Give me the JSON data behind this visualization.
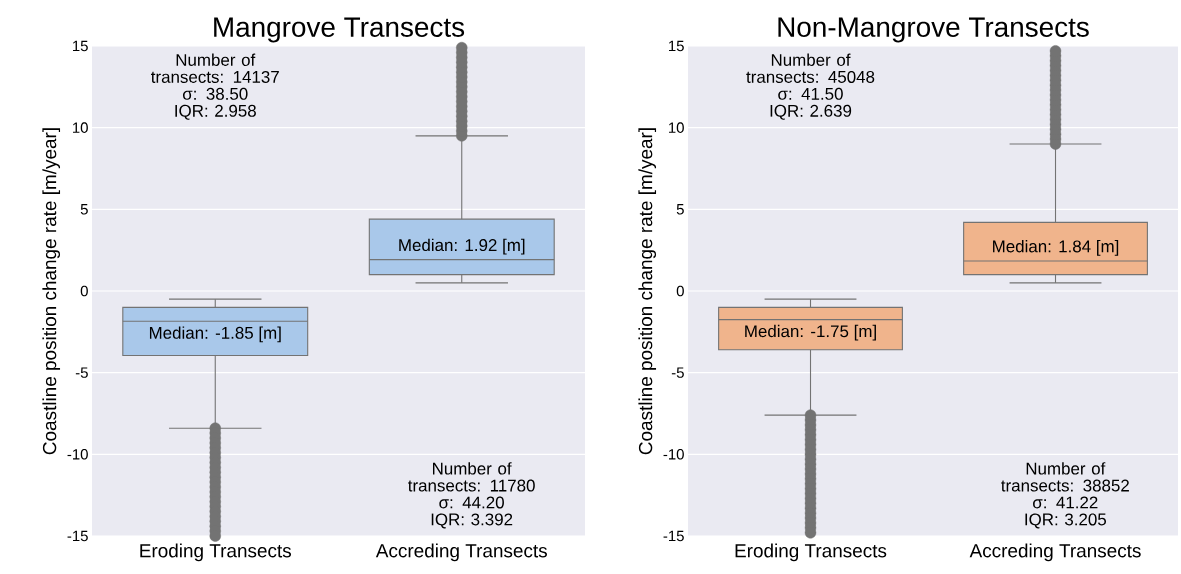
{
  "chart_data": [
    {
      "type": "box",
      "title": "Mangrove Transects",
      "ylabel": "Coastline position change rate [m/year]",
      "categories": [
        "Eroding Transects",
        "Accreding Transects"
      ],
      "series": [
        {
          "color": "#a9c8ea",
          "marker": "circle",
          "boxes": [
            {
              "low": -8.4,
              "q1": -3.95,
              "median": -1.85,
              "q3": -1.0,
              "high": -0.5,
              "outliers": [
                -8.4,
                -8.7,
                -9.0,
                -9.3,
                -9.6,
                -9.9,
                -10.2,
                -10.5,
                -10.8,
                -11.1,
                -11.4,
                -11.7,
                -12.0,
                -12.3,
                -12.6,
                -12.9,
                -13.2,
                -13.5,
                -13.8,
                -14.1,
                -14.4,
                -14.7,
                -15.0
              ]
            },
            {
              "low": 0.5,
              "q1": 1.0,
              "median": 1.92,
              "q3": 4.4,
              "high": 9.5,
              "outliers": [
                9.5,
                9.8,
                10.1,
                10.4,
                10.7,
                11.0,
                11.3,
                11.6,
                11.9,
                12.2,
                12.5,
                12.8,
                13.1,
                13.4,
                13.7,
                14.0,
                14.3,
                14.6,
                14.9
              ]
            }
          ]
        }
      ],
      "ylim": [
        -15,
        15
      ],
      "yticks": [
        -15,
        -10,
        -5,
        0,
        5,
        10,
        15
      ],
      "grid": "y",
      "annotations": [
        "Number of transects: 14137",
        "σ: 38.50",
        "IQR: 2.958",
        {
          "text": "Median: -1.85 [m]",
          "x": "Eroding Transects",
          "y": -1.85
        },
        {
          "text": "Median: 1.92 [m]",
          "x": "Accreding Transects",
          "y": 1.92
        },
        "Number of transects: 11780",
        "σ: 44.20",
        "IQR: 3.392"
      ]
    },
    {
      "type": "box",
      "title": "Non-Mangrove Transects",
      "ylabel": "Coastline position change rate [m/year]",
      "categories": [
        "Eroding Transects",
        "Accreding Transects"
      ],
      "series": [
        {
          "color": "#f0b48c",
          "marker": "circle",
          "boxes": [
            {
              "low": -7.6,
              "q1": -3.6,
              "median": -1.75,
              "q3": -1.0,
              "high": -0.5,
              "outliers": [
                -7.6,
                -7.9,
                -8.2,
                -8.5,
                -8.8,
                -9.1,
                -9.4,
                -9.7,
                -10.0,
                -10.3,
                -10.6,
                -10.9,
                -11.2,
                -11.5,
                -11.8,
                -12.1,
                -12.4,
                -12.7,
                -13.0,
                -13.3,
                -13.6,
                -13.9,
                -14.2,
                -14.5,
                -14.8
              ]
            },
            {
              "low": 0.5,
              "q1": 1.0,
              "median": 1.84,
              "q3": 4.2,
              "high": 9.0,
              "outliers": [
                9.0,
                9.3,
                9.6,
                9.9,
                10.2,
                10.5,
                10.8,
                11.1,
                11.4,
                11.7,
                12.0,
                12.3,
                12.6,
                12.9,
                13.2,
                13.5,
                13.8,
                14.1,
                14.4,
                14.7
              ]
            }
          ]
        }
      ],
      "ylim": [
        -15,
        15
      ],
      "yticks": [
        -15,
        -10,
        -5,
        0,
        5,
        10,
        15
      ],
      "grid": "y",
      "annotations": [
        "Number of transects: 45048",
        "σ: 41.50",
        "IQR: 2.639",
        {
          "text": "Median: -1.75 [m]",
          "x": "Eroding Transects",
          "y": -1.75
        },
        {
          "text": "Median: 1.84 [m]",
          "x": "Accreding Transects",
          "y": 1.84
        },
        "Number of transects: 38852",
        "σ: 41.22",
        "IQR: 3.205"
      ]
    }
  ]
}
